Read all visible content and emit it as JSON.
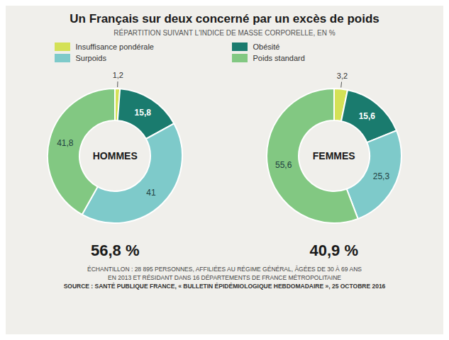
{
  "title": "Un Français sur deux concerné par un excès de poids",
  "subtitle": "RÉPARTITION SUIVANT L'INDICE DE MASSE CORPORELLE, EN %",
  "annotations": [
    "ÉCHANTILLON : 28 895 PERSONNES, AFFILIÉES AU RÉGIME GÉNÉRAL, ÂGÉES DE 30 À 69 ANS",
    "EN 2013 ET RÉSIDANT DANS 16 DÉPARTEMENTS DE FRANCE MÉTROPOLITAINE",
    "SOURCE :  SANTÉ PUBLIQUE FRANCE, « BULLETIN ÉPIDÉMIOLOGIQUE HEBDOMADAIRE », 25 OCTOBRE 2016"
  ],
  "chart_data": [
    {
      "type": "pie",
      "title": "HOMMES",
      "categories": [
        "Insuffisance pondérale",
        "Obésité",
        "Surpoids",
        "Poids standard"
      ],
      "values": [
        1.2,
        15.8,
        41.0,
        41.8
      ],
      "value_labels": [
        "1,2",
        "15,8",
        "41",
        "41,8"
      ],
      "colors": [
        "#d4e157",
        "#1a7b6e",
        "#7ecaca",
        "#82c882"
      ],
      "data_labels": true,
      "legend": "top",
      "annotations": [
        "56,8 %"
      ]
    },
    {
      "type": "pie",
      "title": "FEMMES",
      "categories": [
        "Insuffisance pondérale",
        "Obésité",
        "Surpoids",
        "Poids standard"
      ],
      "values": [
        3.2,
        15.6,
        25.3,
        55.6
      ],
      "value_labels": [
        "3,2",
        "15,6",
        "25,3",
        "55,6"
      ],
      "colors": [
        "#d4e157",
        "#1a7b6e",
        "#7ecaca",
        "#82c882"
      ],
      "data_labels": true,
      "legend": "top",
      "annotations": [
        "40,9 %"
      ]
    }
  ]
}
